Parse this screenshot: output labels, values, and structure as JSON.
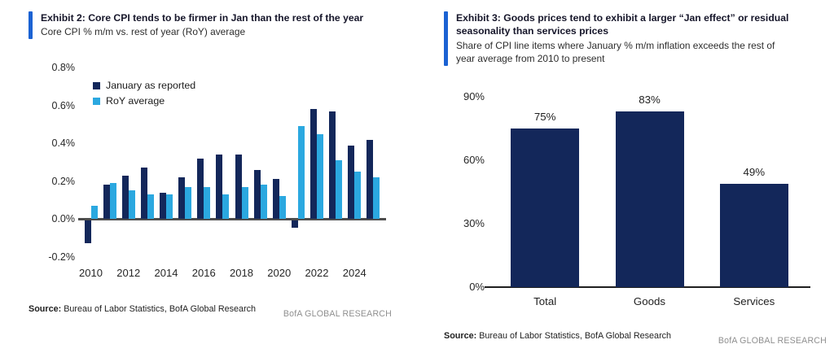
{
  "colors": {
    "navy": "#13275a",
    "light_blue": "#2ba8e0",
    "accent_blue": "#1b62d3",
    "axis_gray": "#4d4d4d",
    "axis_black": "#1f1f1f",
    "brand_gray": "#8f8f8f"
  },
  "exhibit2": {
    "title": "Exhibit 2: Core CPI tends to be firmer in Jan than the rest of the year",
    "subtitle": "Core CPI % m/m vs. rest of year (RoY) average",
    "source_label": "Source:",
    "source_text": "Bureau of Labor Statistics, BofA Global Research",
    "brand": "BofA GLOBAL RESEARCH"
  },
  "exhibit3": {
    "title_lines": [
      "Exhibit 3: Goods prices tend to exhibit a larger “Jan effect” or residual",
      "seasonality than services prices"
    ],
    "subtitle_lines": [
      "Share of CPI line items where January % m/m inflation exceeds the rest of",
      "year average from 2010 to present"
    ],
    "source_label": "Source:",
    "source_text": "Bureau of Labor Statistics, BofA Global Research",
    "brand": "BofA GLOBAL RESEARCH"
  },
  "chart_data": [
    {
      "type": "bar",
      "title": "Exhibit 2: Core CPI tends to be firmer in Jan than the rest of the year",
      "subtitle": "Core CPI % m/m vs. rest of year (RoY) average",
      "unit": "% m/m",
      "grid": false,
      "legend_position": "inside-top-left",
      "categories": [
        2010,
        2011,
        2012,
        2013,
        2014,
        2015,
        2016,
        2017,
        2018,
        2019,
        2020,
        2021,
        2022,
        2023,
        2024,
        2025
      ],
      "series": [
        {
          "name": "January as reported",
          "color": "#13275a",
          "values": [
            -0.12,
            0.18,
            0.23,
            0.27,
            0.14,
            0.22,
            0.32,
            0.34,
            0.34,
            0.26,
            0.21,
            -0.04,
            0.58,
            0.57,
            0.39,
            0.42
          ]
        },
        {
          "name": "RoY average",
          "color": "#2ba8e0",
          "values": [
            0.07,
            0.19,
            0.15,
            0.13,
            0.13,
            0.17,
            0.17,
            0.13,
            0.17,
            0.18,
            0.12,
            0.49,
            0.45,
            0.31,
            0.25,
            0.22
          ]
        }
      ],
      "ylim": [
        -0.2,
        0.8
      ],
      "yticks": [
        {
          "v": 0.8,
          "label": "0.8%"
        },
        {
          "v": 0.6,
          "label": "0.6%"
        },
        {
          "v": 0.4,
          "label": "0.4%"
        },
        {
          "v": 0.2,
          "label": "0.2%"
        },
        {
          "v": 0.0,
          "label": "0.0%"
        },
        {
          "v": -0.2,
          "label": "-0.2%"
        }
      ],
      "xticks": [
        {
          "year": 2010,
          "label": "2010"
        },
        {
          "year": 2012,
          "label": "2012"
        },
        {
          "year": 2014,
          "label": "2014"
        },
        {
          "year": 2016,
          "label": "2016"
        },
        {
          "year": 2018,
          "label": "2018"
        },
        {
          "year": 2020,
          "label": "2020"
        },
        {
          "year": 2022,
          "label": "2022"
        },
        {
          "year": 2024,
          "label": "2024"
        }
      ]
    },
    {
      "type": "bar",
      "title": "Exhibit 3: Goods prices tend to exhibit a larger “Jan effect” or residual seasonality than services prices",
      "subtitle": "Share of CPI line items where January % m/m inflation exceeds the rest of year average from 2010 to present",
      "grid": false,
      "bar_color": "#13275a",
      "categories": [
        "Total",
        "Goods",
        "Services"
      ],
      "values": [
        75,
        83,
        49
      ],
      "data_labels": [
        "75%",
        "83%",
        "49%"
      ],
      "ylim": [
        0,
        90
      ],
      "yticks": [
        {
          "v": 90,
          "label": "90%"
        },
        {
          "v": 60,
          "label": "60%"
        },
        {
          "v": 30,
          "label": "30%"
        },
        {
          "v": 0,
          "label": "0%"
        }
      ]
    }
  ]
}
